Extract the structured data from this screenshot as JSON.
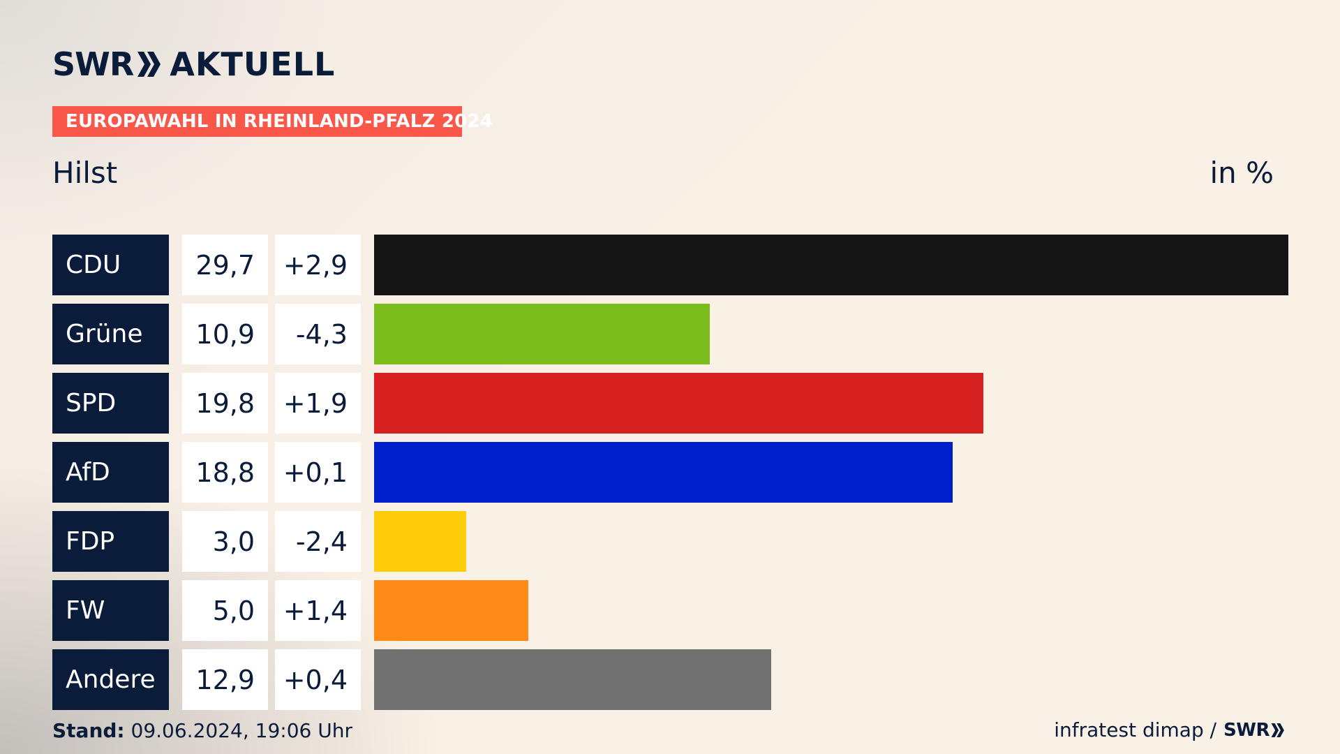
{
  "brand": {
    "swr": "SWR",
    "aktuell": "AKTUELL"
  },
  "banner": "EUROPAWAHL IN RHEINLAND-PFALZ 2024",
  "subtitle": "Hilst",
  "unit": "in %",
  "colors": {
    "navy": "#0b1c3b",
    "banner": "#f9574a"
  },
  "chart_data": {
    "type": "bar",
    "orientation": "horizontal",
    "categories": [
      "CDU",
      "Grüne",
      "SPD",
      "AfD",
      "FDP",
      "FW",
      "Andere"
    ],
    "values": [
      29.7,
      10.9,
      19.8,
      18.8,
      3.0,
      5.0,
      12.9
    ],
    "value_labels": [
      "29,7",
      "10,9",
      "19,8",
      "18,8",
      "3,0",
      "5,0",
      "12,9"
    ],
    "changes": [
      2.9,
      -4.3,
      1.9,
      0.1,
      -2.4,
      1.4,
      0.4
    ],
    "change_labels": [
      "+2,9",
      "-4,3",
      "+1,9",
      "+0,1",
      "-2,4",
      "+1,4",
      "+0,4"
    ],
    "bar_colors": [
      "#151515",
      "#7abd1d",
      "#d72020",
      "#001ecb",
      "#ffcc0a",
      "#ff8a17",
      "#717171"
    ],
    "title": "Hilst",
    "ylabel": "in %",
    "xlim": [
      0,
      29.7
    ]
  },
  "footer": {
    "stand_label": "Stand:",
    "stand_value": " 09.06.2024, 19:06 Uhr",
    "source": "infratest dimap /",
    "source_brand": "SWR"
  }
}
